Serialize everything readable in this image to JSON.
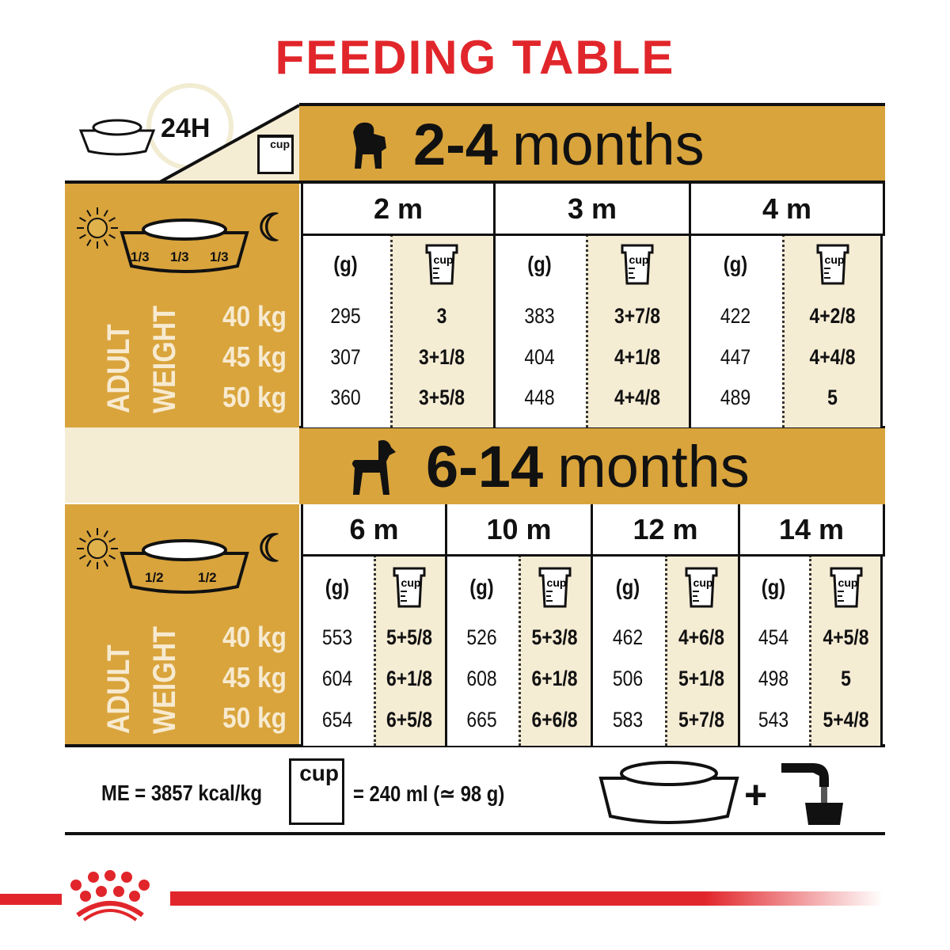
{
  "title": "FEEDING TABLE",
  "header": {
    "label_24h": "24H",
    "cup_label": "cup"
  },
  "left_panel": {
    "adult": "ADULT",
    "weight": "WEIGHT",
    "weights": [
      "40 kg",
      "45 kg",
      "50 kg"
    ]
  },
  "fractions_1": [
    "1/3",
    "1/3",
    "1/3"
  ],
  "fractions_2": [
    "1/2",
    "1/2"
  ],
  "sections": [
    {
      "num": "2-4",
      "word": "months",
      "gram_label": "(g)",
      "columns": [
        {
          "label": "2 m",
          "grams": [
            "295",
            "307",
            "360"
          ],
          "cups": [
            "3",
            "3+1/8",
            "3+5/8"
          ]
        },
        {
          "label": "3 m",
          "grams": [
            "383",
            "404",
            "448"
          ],
          "cups": [
            "3+7/8",
            "4+1/8",
            "4+4/8"
          ]
        },
        {
          "label": "4 m",
          "grams": [
            "422",
            "447",
            "489"
          ],
          "cups": [
            "4+2/8",
            "4+4/8",
            "5"
          ]
        }
      ]
    },
    {
      "num": "6-14",
      "word": "months",
      "gram_label": "(g)",
      "columns": [
        {
          "label": "6 m",
          "grams": [
            "553",
            "604",
            "654"
          ],
          "cups": [
            "5+5/8",
            "6+1/8",
            "6+5/8"
          ]
        },
        {
          "label": "10 m",
          "grams": [
            "526",
            "608",
            "665"
          ],
          "cups": [
            "5+3/8",
            "6+1/8",
            "6+6/8"
          ]
        },
        {
          "label": "12 m",
          "grams": [
            "462",
            "506",
            "583"
          ],
          "cups": [
            "4+6/8",
            "5+1/8",
            "5+7/8"
          ]
        },
        {
          "label": "14 m",
          "grams": [
            "454",
            "498",
            "543"
          ],
          "cups": [
            "4+5/8",
            "5",
            "5+4/8"
          ]
        }
      ]
    }
  ],
  "footer": {
    "energy": "ME = 3857 kcal/kg",
    "cup_label": "cup",
    "cup_equiv": "= 240 ml (≃ 98 g)",
    "plus": "+"
  },
  "colors": {
    "title_red": "#e1262b",
    "gold": "#d9a43c",
    "cream": "#f5ecd4",
    "brand_red": "#e1262b"
  },
  "icons": [
    "food-bowl-icon",
    "clock-icon",
    "measuring-cup-icon",
    "puppy-icon",
    "adult-dog-icon",
    "sun-icon",
    "moon-icon",
    "water-tap-icon",
    "royal-canin-crown-logo"
  ]
}
